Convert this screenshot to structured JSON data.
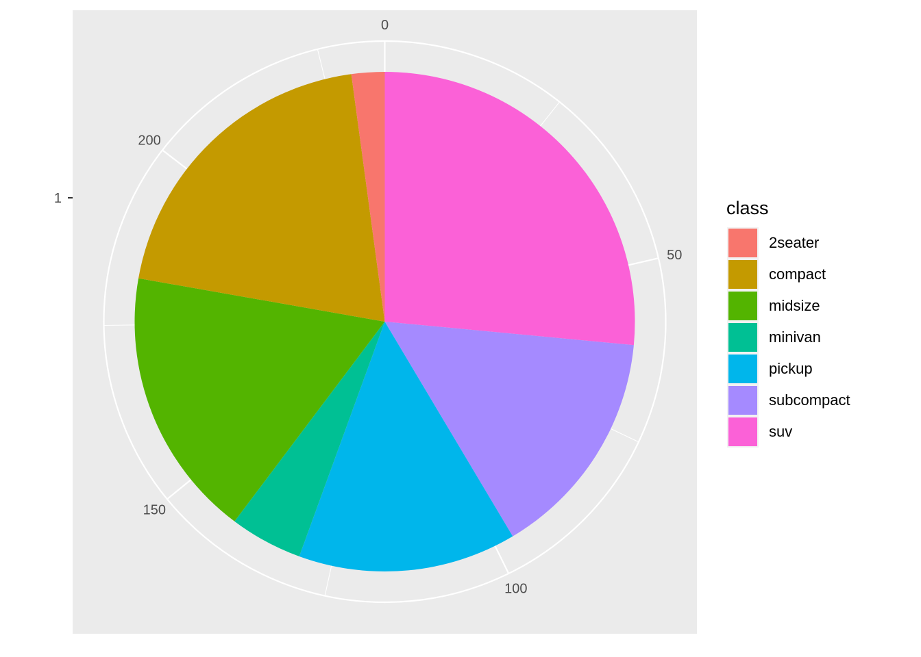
{
  "chart_data": {
    "type": "pie",
    "coord": "polar",
    "categories": [
      "2seater",
      "compact",
      "midsize",
      "minivan",
      "pickup",
      "subcompact",
      "suv"
    ],
    "values": [
      5,
      47,
      41,
      11,
      33,
      35,
      62
    ],
    "total": 234,
    "stack_order": [
      "suv",
      "subcompact",
      "pickup",
      "minivan",
      "midsize",
      "compact",
      "2seater"
    ],
    "colors": {
      "2seater": "#F8766D",
      "compact": "#C49A00",
      "midsize": "#53B400",
      "minivan": "#00C094",
      "pickup": "#00B6EB",
      "subcompact": "#A58AFF",
      "suv": "#FB61D7"
    },
    "theta_breaks": [
      0,
      50,
      100,
      150,
      200
    ],
    "theta_tick_labels": [
      "0",
      "50",
      "100",
      "150",
      "200"
    ],
    "r_tick_labels": [
      "1"
    ],
    "legend_title": "class",
    "legend_position": "right",
    "panel_background": "#EBEBEB",
    "grid_color": "#FFFFFF"
  }
}
